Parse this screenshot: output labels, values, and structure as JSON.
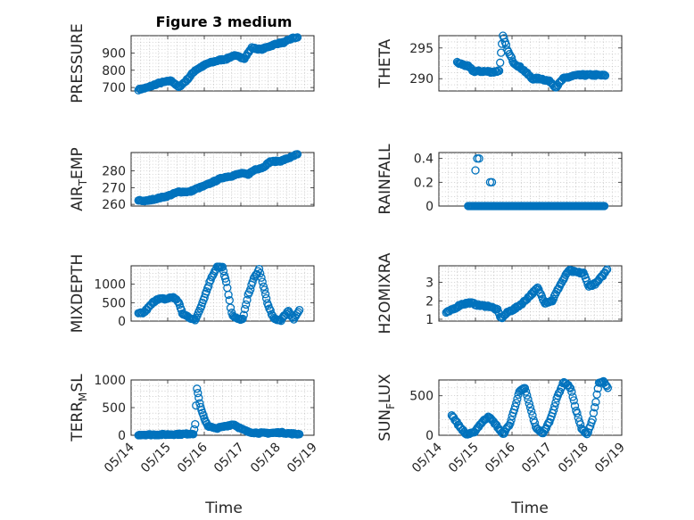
{
  "figure_title": "Figure 3 medium",
  "x_axis_label": "Time",
  "x_tick_labels": [
    "05/14",
    "05/15",
    "05/16",
    "05/17",
    "05/18",
    "05/19"
  ],
  "marker_color": "#0072BD",
  "chart_data": [
    {
      "type": "scatter",
      "title": "Figure 3 medium",
      "ylabel": "PRESSURE",
      "xlabel": "",
      "xlim": [
        0,
        5
      ],
      "ylim": [
        680,
        1000
      ],
      "yticks": [
        700,
        800,
        900
      ],
      "marker": "open-circle",
      "grid": true,
      "keypoints": [
        [
          0.2,
          688
        ],
        [
          0.45,
          700
        ],
        [
          0.75,
          725
        ],
        [
          1.1,
          740
        ],
        [
          1.3,
          702
        ],
        [
          1.5,
          738
        ],
        [
          1.75,
          800
        ],
        [
          2.1,
          840
        ],
        [
          2.4,
          858
        ],
        [
          2.6,
          865
        ],
        [
          2.8,
          885
        ],
        [
          3.1,
          870
        ],
        [
          3.3,
          930
        ],
        [
          3.55,
          920
        ],
        [
          3.8,
          940
        ],
        [
          4.0,
          955
        ],
        [
          4.2,
          962
        ],
        [
          4.4,
          985
        ],
        [
          4.55,
          990
        ]
      ],
      "scatter_noise": 4
    },
    {
      "type": "scatter",
      "ylabel": "THETA",
      "xlim": [
        0,
        5
      ],
      "ylim": [
        288,
        297
      ],
      "yticks": [
        290,
        295
      ],
      "marker": "open-circle",
      "grid": true,
      "keypoints": [
        [
          0.5,
          292.6
        ],
        [
          0.8,
          292
        ],
        [
          0.95,
          291.2
        ],
        [
          1.2,
          291.2
        ],
        [
          1.5,
          291.1
        ],
        [
          1.65,
          291.3
        ],
        [
          1.75,
          297
        ],
        [
          1.9,
          294.3
        ],
        [
          2.05,
          292.6
        ],
        [
          2.3,
          291.5
        ],
        [
          2.55,
          290
        ],
        [
          2.8,
          290
        ],
        [
          3.05,
          289.5
        ],
        [
          3.2,
          288.6
        ],
        [
          3.4,
          290
        ],
        [
          3.7,
          290.5
        ],
        [
          4.0,
          290.6
        ],
        [
          4.3,
          290.6
        ],
        [
          4.55,
          290.5
        ]
      ],
      "scatter_noise": 0.15
    },
    {
      "type": "scatter",
      "ylabel": "AIR_TEMP",
      "xlim": [
        0,
        5
      ],
      "ylim": [
        259,
        291
      ],
      "yticks": [
        260,
        270,
        280
      ],
      "marker": "open-circle",
      "grid": true,
      "keypoints": [
        [
          0.2,
          262.5
        ],
        [
          0.4,
          262
        ],
        [
          0.7,
          263.5
        ],
        [
          1.0,
          265
        ],
        [
          1.3,
          267.5
        ],
        [
          1.6,
          267.5
        ],
        [
          1.8,
          269.5
        ],
        [
          2.0,
          271
        ],
        [
          2.2,
          273
        ],
        [
          2.5,
          276
        ],
        [
          2.75,
          277
        ],
        [
          3.0,
          278.5
        ],
        [
          3.2,
          278
        ],
        [
          3.4,
          281
        ],
        [
          3.6,
          282
        ],
        [
          3.8,
          285.5
        ],
        [
          4.1,
          286
        ],
        [
          4.4,
          288.5
        ],
        [
          4.55,
          290
        ]
      ],
      "scatter_noise": 0.4
    },
    {
      "type": "scatter",
      "ylabel": "RAINFALL",
      "xlim": [
        0,
        5
      ],
      "ylim": [
        0,
        0.45
      ],
      "yticks": [
        0,
        0.2,
        0.4
      ],
      "marker": "open-circle",
      "grid": true,
      "baseline_range": [
        0.8,
        4.55
      ],
      "baseline_value": 0,
      "points": [
        [
          1.0,
          0.3
        ],
        [
          1.05,
          0.4
        ],
        [
          1.1,
          0.4
        ],
        [
          1.4,
          0.2
        ],
        [
          1.45,
          0.2
        ]
      ]
    },
    {
      "type": "scatter",
      "ylabel": "MIXDEPTH",
      "xlim": [
        0,
        5
      ],
      "ylim": [
        0,
        1500
      ],
      "yticks": [
        0,
        500,
        1000
      ],
      "marker": "open-circle",
      "grid": true,
      "keypoints": [
        [
          0.2,
          200
        ],
        [
          0.35,
          230
        ],
        [
          0.55,
          450
        ],
        [
          0.7,
          600
        ],
        [
          0.95,
          600
        ],
        [
          1.15,
          650
        ],
        [
          1.3,
          520
        ],
        [
          1.4,
          200
        ],
        [
          1.6,
          100
        ],
        [
          1.75,
          20
        ],
        [
          1.95,
          500
        ],
        [
          2.2,
          1200
        ],
        [
          2.35,
          1470
        ],
        [
          2.5,
          1450
        ],
        [
          2.6,
          1050
        ],
        [
          2.75,
          200
        ],
        [
          2.9,
          50
        ],
        [
          3.05,
          50
        ],
        [
          3.2,
          700
        ],
        [
          3.35,
          1150
        ],
        [
          3.5,
          1390
        ],
        [
          3.62,
          950
        ],
        [
          3.75,
          400
        ],
        [
          3.9,
          60
        ],
        [
          4.1,
          30
        ],
        [
          4.3,
          280
        ],
        [
          4.45,
          50
        ],
        [
          4.6,
          300
        ]
      ],
      "scatter_noise": 25
    },
    {
      "type": "scatter",
      "ylabel": "H2OMIXRA",
      "xlim": [
        0,
        5
      ],
      "ylim": [
        0.9,
        3.9
      ],
      "yticks": [
        1,
        2,
        3
      ],
      "marker": "open-circle",
      "grid": true,
      "keypoints": [
        [
          0.2,
          1.35
        ],
        [
          0.4,
          1.55
        ],
        [
          0.6,
          1.8
        ],
        [
          0.85,
          1.9
        ],
        [
          1.1,
          1.75
        ],
        [
          1.4,
          1.7
        ],
        [
          1.6,
          1.5
        ],
        [
          1.7,
          1.05
        ],
        [
          1.9,
          1.4
        ],
        [
          2.1,
          1.6
        ],
        [
          2.3,
          1.9
        ],
        [
          2.5,
          2.3
        ],
        [
          2.7,
          2.7
        ],
        [
          2.9,
          1.9
        ],
        [
          3.1,
          2.0
        ],
        [
          3.3,
          2.8
        ],
        [
          3.55,
          3.65
        ],
        [
          3.75,
          3.55
        ],
        [
          3.95,
          3.5
        ],
        [
          4.1,
          2.8
        ],
        [
          4.3,
          2.95
        ],
        [
          4.45,
          3.3
        ],
        [
          4.6,
          3.7
        ]
      ],
      "scatter_noise": 0.05
    },
    {
      "type": "scatter",
      "ylabel": "TERR_MSL",
      "xlim": [
        0,
        5
      ],
      "ylim": [
        0,
        1000
      ],
      "yticks": [
        0,
        500,
        1000
      ],
      "marker": "open-circle",
      "grid": true,
      "keypoints": [
        [
          0.2,
          10
        ],
        [
          0.6,
          10
        ],
        [
          1.0,
          15
        ],
        [
          1.4,
          20
        ],
        [
          1.7,
          30
        ],
        [
          1.75,
          200
        ],
        [
          1.8,
          850
        ],
        [
          1.9,
          500
        ],
        [
          2.0,
          300
        ],
        [
          2.1,
          170
        ],
        [
          2.3,
          120
        ],
        [
          2.55,
          160
        ],
        [
          2.8,
          200
        ],
        [
          3.0,
          120
        ],
        [
          3.2,
          60
        ],
        [
          3.5,
          40
        ],
        [
          3.8,
          40
        ],
        [
          4.1,
          50
        ],
        [
          4.35,
          30
        ],
        [
          4.6,
          20
        ]
      ],
      "scatter_noise": 12
    },
    {
      "type": "scatter",
      "ylabel": "SUN_FLUX",
      "xlim": [
        0,
        5
      ],
      "ylim": [
        0,
        700
      ],
      "yticks": [
        0,
        500
      ],
      "marker": "open-circle",
      "grid": true,
      "keypoints": [
        [
          0.35,
          260
        ],
        [
          0.55,
          120
        ],
        [
          0.75,
          10
        ],
        [
          0.95,
          30
        ],
        [
          1.15,
          150
        ],
        [
          1.35,
          240
        ],
        [
          1.55,
          140
        ],
        [
          1.75,
          10
        ],
        [
          1.95,
          150
        ],
        [
          2.2,
          550
        ],
        [
          2.35,
          600
        ],
        [
          2.5,
          350
        ],
        [
          2.65,
          100
        ],
        [
          2.85,
          20
        ],
        [
          3.05,
          200
        ],
        [
          3.25,
          500
        ],
        [
          3.42,
          680
        ],
        [
          3.6,
          600
        ],
        [
          3.75,
          320
        ],
        [
          3.9,
          80
        ],
        [
          4.05,
          10
        ],
        [
          4.2,
          200
        ],
        [
          4.38,
          660
        ],
        [
          4.5,
          680
        ],
        [
          4.62,
          600
        ]
      ],
      "scatter_noise": 10
    }
  ]
}
